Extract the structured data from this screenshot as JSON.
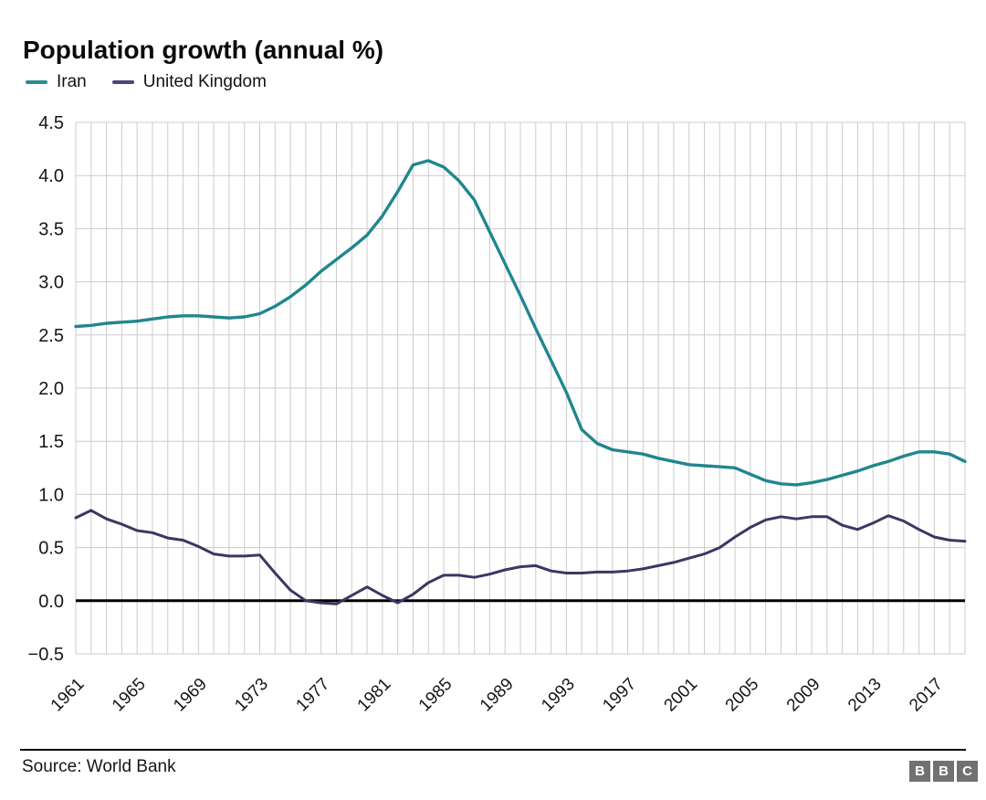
{
  "header": {
    "title": "Population growth (annual %)"
  },
  "legend": {
    "items": [
      {
        "label": "Iran",
        "color": "#2a8b92"
      },
      {
        "label": "United Kingdom",
        "color": "#4e4679"
      }
    ]
  },
  "footer": {
    "source": "Source: World Bank",
    "logo_letters": [
      "B",
      "B",
      "C"
    ]
  },
  "chart_data": {
    "type": "line",
    "title": "Population growth (annual %)",
    "grid": "both",
    "legend_position": "top-left",
    "ylim": [
      -0.5,
      4.5
    ],
    "y_ticks": [
      4.5,
      4.0,
      3.5,
      3.0,
      2.5,
      2.0,
      1.5,
      1.0,
      0.5,
      0.0,
      -0.5
    ],
    "y_tick_labels": [
      "4.5",
      "4.0",
      "3.5",
      "3.0",
      "2.5",
      "2.0",
      "1.5",
      "1.0",
      "0.5",
      "0.0",
      "−0.5"
    ],
    "x": [
      1961,
      1962,
      1963,
      1964,
      1965,
      1966,
      1967,
      1968,
      1969,
      1970,
      1971,
      1972,
      1973,
      1974,
      1975,
      1976,
      1977,
      1978,
      1979,
      1980,
      1981,
      1982,
      1983,
      1984,
      1985,
      1986,
      1987,
      1988,
      1989,
      1990,
      1991,
      1992,
      1993,
      1994,
      1995,
      1996,
      1997,
      1998,
      1999,
      2000,
      2001,
      2002,
      2003,
      2004,
      2005,
      2006,
      2007,
      2008,
      2009,
      2010,
      2011,
      2012,
      2013,
      2014,
      2015,
      2016,
      2017,
      2018,
      2019
    ],
    "x_ticks": [
      1961,
      1965,
      1969,
      1973,
      1977,
      1981,
      1985,
      1989,
      1993,
      1997,
      2001,
      2005,
      2009,
      2013,
      2017
    ],
    "x_tick_labels": [
      "1961",
      "1965",
      "1969",
      "1973",
      "1977",
      "1981",
      "1985",
      "1989",
      "1993",
      "1997",
      "2001",
      "2005",
      "2009",
      "2013",
      "2017"
    ],
    "colors": {
      "grid": "#cccccc",
      "zero_line": "#000000",
      "tick_text": "#161616"
    },
    "series": [
      {
        "name": "Iran",
        "color": "#21868e",
        "values": [
          2.58,
          2.59,
          2.61,
          2.62,
          2.63,
          2.65,
          2.67,
          2.68,
          2.68,
          2.67,
          2.66,
          2.67,
          2.7,
          2.77,
          2.86,
          2.97,
          3.1,
          3.21,
          3.32,
          3.44,
          3.62,
          3.85,
          4.1,
          4.14,
          4.08,
          3.95,
          3.77,
          3.47,
          3.17,
          2.87,
          2.56,
          2.26,
          1.96,
          1.61,
          1.48,
          1.42,
          1.4,
          1.38,
          1.34,
          1.31,
          1.28,
          1.27,
          1.26,
          1.25,
          1.19,
          1.13,
          1.1,
          1.09,
          1.11,
          1.14,
          1.18,
          1.22,
          1.27,
          1.31,
          1.36,
          1.4,
          1.4,
          1.38,
          1.31
        ]
      },
      {
        "name": "United Kingdom",
        "color": "#3d3664",
        "values": [
          0.78,
          0.85,
          0.77,
          0.72,
          0.66,
          0.64,
          0.59,
          0.57,
          0.51,
          0.44,
          0.42,
          0.42,
          0.43,
          0.26,
          0.1,
          0.0,
          -0.02,
          -0.03,
          0.05,
          0.13,
          0.05,
          -0.02,
          0.06,
          0.17,
          0.24,
          0.24,
          0.22,
          0.25,
          0.29,
          0.32,
          0.33,
          0.28,
          0.26,
          0.26,
          0.27,
          0.27,
          0.28,
          0.3,
          0.33,
          0.36,
          0.4,
          0.44,
          0.5,
          0.6,
          0.69,
          0.76,
          0.79,
          0.77,
          0.79,
          0.79,
          0.71,
          0.67,
          0.73,
          0.8,
          0.75,
          0.67,
          0.6,
          0.57,
          0.56
        ]
      }
    ]
  }
}
